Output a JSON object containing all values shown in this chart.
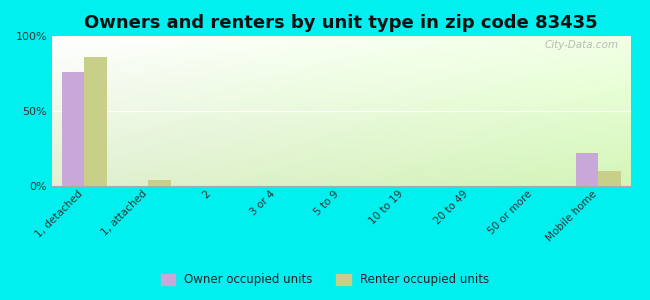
{
  "title": "Owners and renters by unit type in zip code 83435",
  "categories": [
    "1, detached",
    "1, attached",
    "2",
    "3 or 4",
    "5 to 9",
    "10 to 19",
    "20 to 49",
    "50 or more",
    "Mobile home"
  ],
  "owner_values": [
    76,
    0,
    0,
    0,
    0,
    0,
    0,
    0,
    22
  ],
  "renter_values": [
    86,
    4,
    0,
    0,
    0,
    0,
    0,
    0,
    10
  ],
  "owner_color": "#c8a8d8",
  "renter_color": "#c8cf88",
  "background_color": "#00efef",
  "ylim": [
    0,
    100
  ],
  "yticks": [
    0,
    50,
    100
  ],
  "ytick_labels": [
    "0%",
    "50%",
    "100%"
  ],
  "bar_width": 0.35,
  "title_fontsize": 13,
  "watermark": "City-Data.com"
}
